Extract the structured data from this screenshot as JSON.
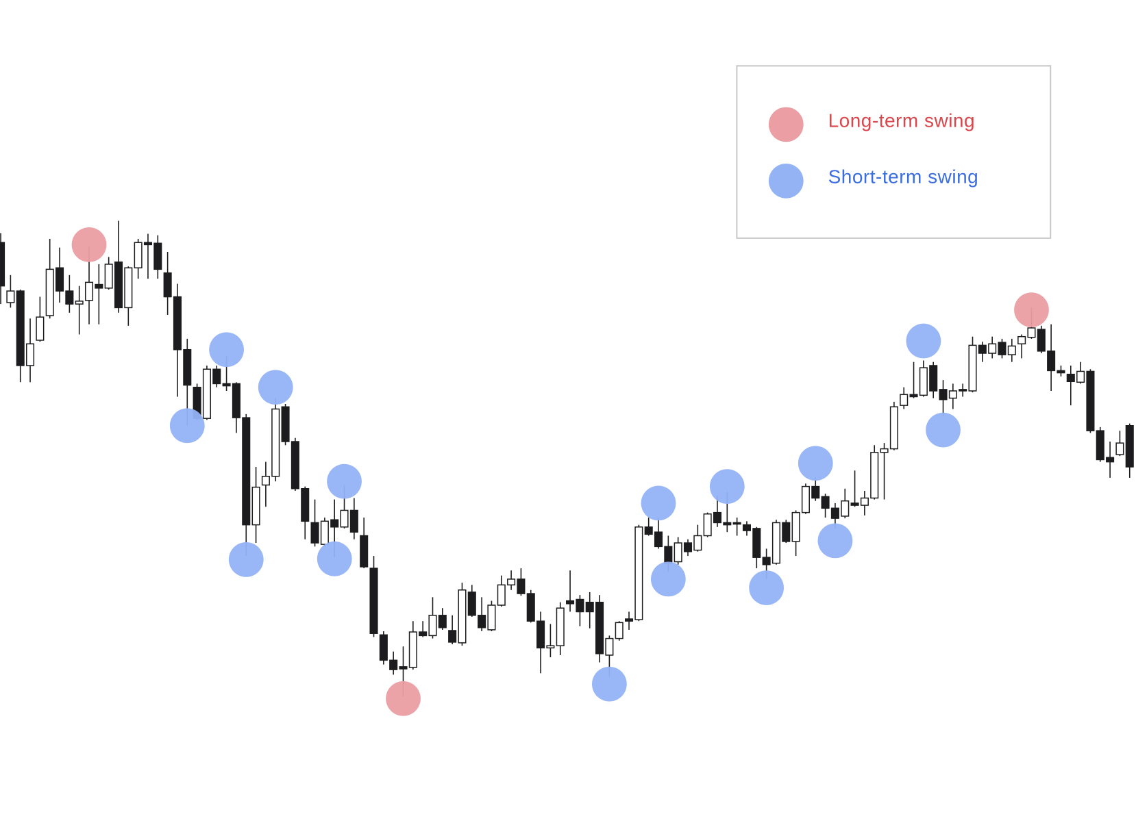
{
  "chart_data": {
    "type": "candlestick",
    "ylim": [
      0,
      1100
    ],
    "up_color": "#ffffff",
    "down_color": "#1c1c1e",
    "wick_color": "#1c1c1e",
    "legend": "upper right",
    "open": [
      765,
      682,
      698,
      595,
      630,
      664,
      730,
      698,
      680,
      685,
      707,
      702,
      738,
      675,
      730,
      765,
      764,
      723,
      690,
      617,
      565,
      522,
      590,
      570,
      570,
      523,
      375,
      430,
      442,
      538,
      490,
      425,
      378,
      348,
      382,
      372,
      395,
      360,
      315,
      223,
      188,
      179,
      178,
      227,
      222,
      250,
      229,
      212,
      282,
      250,
      230,
      264,
      292,
      300,
      280,
      242,
      205,
      208,
      270,
      272,
      268,
      268,
      195,
      218,
      245,
      244,
      372,
      365,
      345,
      324,
      350,
      340,
      360,
      392,
      378,
      378,
      375,
      370,
      330,
      322,
      378,
      352,
      392,
      428,
      414,
      398,
      387,
      405,
      402,
      412,
      475,
      480,
      540,
      555,
      554,
      595,
      562,
      550,
      562,
      560,
      623,
      612,
      627,
      610,
      625,
      634,
      645,
      615,
      588,
      583,
      572,
      587,
      505,
      468,
      472,
      512
    ],
    "high": [
      778,
      720,
      700,
      660,
      690,
      770,
      758,
      720,
      705,
      760,
      735,
      745,
      795,
      732,
      770,
      777,
      775,
      752,
      708,
      632,
      570,
      595,
      595,
      608,
      572,
      528,
      455,
      462,
      550,
      542,
      495,
      428,
      410,
      385,
      410,
      430,
      412,
      385,
      332,
      228,
      200,
      207,
      242,
      242,
      275,
      260,
      250,
      295,
      292,
      275,
      270,
      305,
      312,
      315,
      285,
      255,
      238,
      268,
      312,
      278,
      282,
      278,
      222,
      242,
      255,
      375,
      385,
      385,
      360,
      358,
      355,
      375,
      392,
      415,
      420,
      385,
      380,
      372,
      342,
      382,
      382,
      395,
      432,
      440,
      418,
      405,
      425,
      450,
      422,
      485,
      488,
      545,
      565,
      600,
      602,
      600,
      575,
      570,
      570,
      635,
      628,
      635,
      632,
      632,
      638,
      675,
      650,
      652,
      595,
      595,
      600,
      590,
      510,
      490,
      505,
      515
    ],
    "low": [
      680,
      675,
      572,
      572,
      628,
      660,
      682,
      668,
      638,
      652,
      652,
      700,
      668,
      650,
      715,
      715,
      715,
      665,
      552,
      512,
      520,
      520,
      565,
      560,
      502,
      332,
      350,
      400,
      435,
      485,
      422,
      355,
      345,
      345,
      330,
      370,
      355,
      315,
      220,
      182,
      168,
      138,
      175,
      220,
      218,
      230,
      210,
      208,
      248,
      228,
      228,
      262,
      285,
      277,
      240,
      170,
      192,
      195,
      255,
      235,
      232,
      185,
      165,
      215,
      230,
      242,
      360,
      342,
      310,
      320,
      332,
      338,
      358,
      372,
      365,
      360,
      360,
      315,
      300,
      320,
      350,
      332,
      390,
      408,
      385,
      370,
      384,
      400,
      388,
      410,
      410,
      478,
      535,
      550,
      552,
      550,
      525,
      535,
      552,
      558,
      600,
      605,
      605,
      600,
      605,
      632,
      612,
      560,
      580,
      540,
      570,
      502,
      462,
      440,
      470,
      440
    ],
    "close": [
      705,
      698,
      595,
      625,
      662,
      728,
      698,
      680,
      684,
      710,
      702,
      735,
      675,
      730,
      765,
      762,
      728,
      690,
      617,
      568,
      522,
      590,
      570,
      567,
      523,
      375,
      427,
      442,
      535,
      490,
      425,
      380,
      350,
      380,
      372,
      395,
      365,
      317,
      225,
      188,
      175,
      176,
      227,
      222,
      250,
      233,
      213,
      285,
      250,
      233,
      264,
      292,
      300,
      280,
      242,
      205,
      208,
      260,
      266,
      255,
      255,
      197,
      218,
      240,
      242,
      372,
      362,
      345,
      322,
      350,
      338,
      360,
      390,
      378,
      375,
      376,
      367,
      330,
      320,
      378,
      352,
      392,
      428,
      412,
      398,
      384,
      408,
      402,
      412,
      475,
      480,
      538,
      555,
      552,
      592,
      560,
      548,
      560,
      560,
      623,
      612,
      625,
      610,
      622,
      635,
      647,
      615,
      588,
      585,
      573,
      587,
      505,
      465,
      462,
      488,
      455
    ],
    "swings": [
      {
        "name": "Long-term swing",
        "color": "#eb9ea3",
        "text_color": "#d9464b",
        "x": [
          9,
          41,
          105
        ],
        "values": [
          762,
          135,
          672
        ]
      },
      {
        "name": "Short-term swing",
        "color": "#94b3f5",
        "text_color": "#3a6ee0",
        "x": [
          19,
          23,
          25,
          28,
          34,
          35,
          62,
          67,
          68,
          74,
          78,
          83,
          85,
          94,
          96
        ],
        "values": [
          512,
          617,
          327,
          565,
          328,
          435,
          155,
          405,
          300,
          428,
          288,
          460,
          353,
          629,
          506
        ]
      }
    ]
  }
}
